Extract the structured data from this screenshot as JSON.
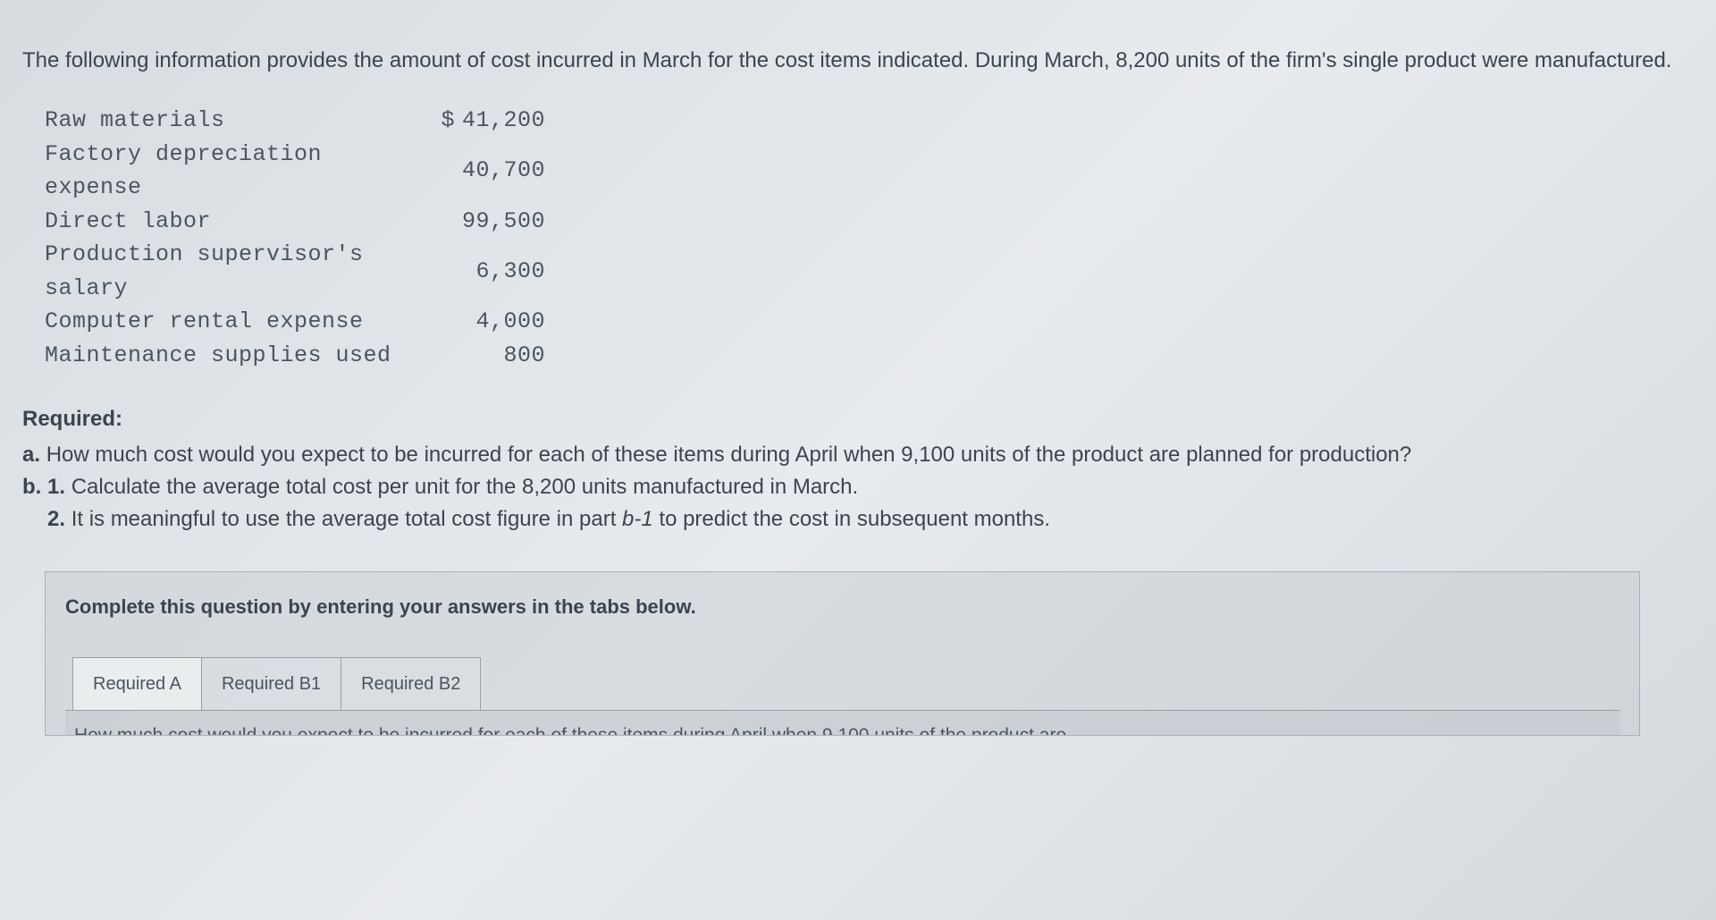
{
  "intro": "The following information provides the amount of cost incurred in March for the cost items indicated. During March, 8,200 units of the firm's single product were manufactured.",
  "costs": {
    "currency_symbol": "$",
    "rows": [
      {
        "label": "Raw materials",
        "value": "41,200",
        "show_currency": true
      },
      {
        "label": "Factory depreciation expense",
        "value": "40,700",
        "show_currency": false
      },
      {
        "label": "Direct labor",
        "value": "99,500",
        "show_currency": false
      },
      {
        "label": "Production supervisor's salary",
        "value": "6,300",
        "show_currency": false
      },
      {
        "label": "Computer rental expense",
        "value": "4,000",
        "show_currency": false
      },
      {
        "label": "Maintenance supplies used",
        "value": "800",
        "show_currency": false
      }
    ]
  },
  "required": {
    "heading": "Required:",
    "item_a_prefix": "a. ",
    "item_a": "How much cost would you expect to be incurred for each of these items during April when 9,100 units of the product are planned for production?",
    "item_b1_prefix": "b. 1. ",
    "item_b1": "Calculate the average total cost per unit for the 8,200 units manufactured in March.",
    "item_b2_prefix": "2. ",
    "item_b2_part1": "It is meaningful to use the average total cost figure in part ",
    "item_b2_italic": "b-1",
    "item_b2_part2": " to predict the cost in subsequent months."
  },
  "answer_box": {
    "prompt": "Complete this question by entering your answers in the tabs below.",
    "tabs": {
      "a": "Required A",
      "b1": "Required B1",
      "b2": "Required B2"
    },
    "tab_content_cutoff": "How much cost would you expect to be incurred for each of these items during April when 9,100 units of the product are"
  },
  "styling": {
    "body_font_size": 24,
    "mono_font_size": 25,
    "text_color": "#3a4550",
    "mono_color": "#4a5560",
    "box_border": "#aab0b6",
    "tab_border": "#999fa5"
  }
}
